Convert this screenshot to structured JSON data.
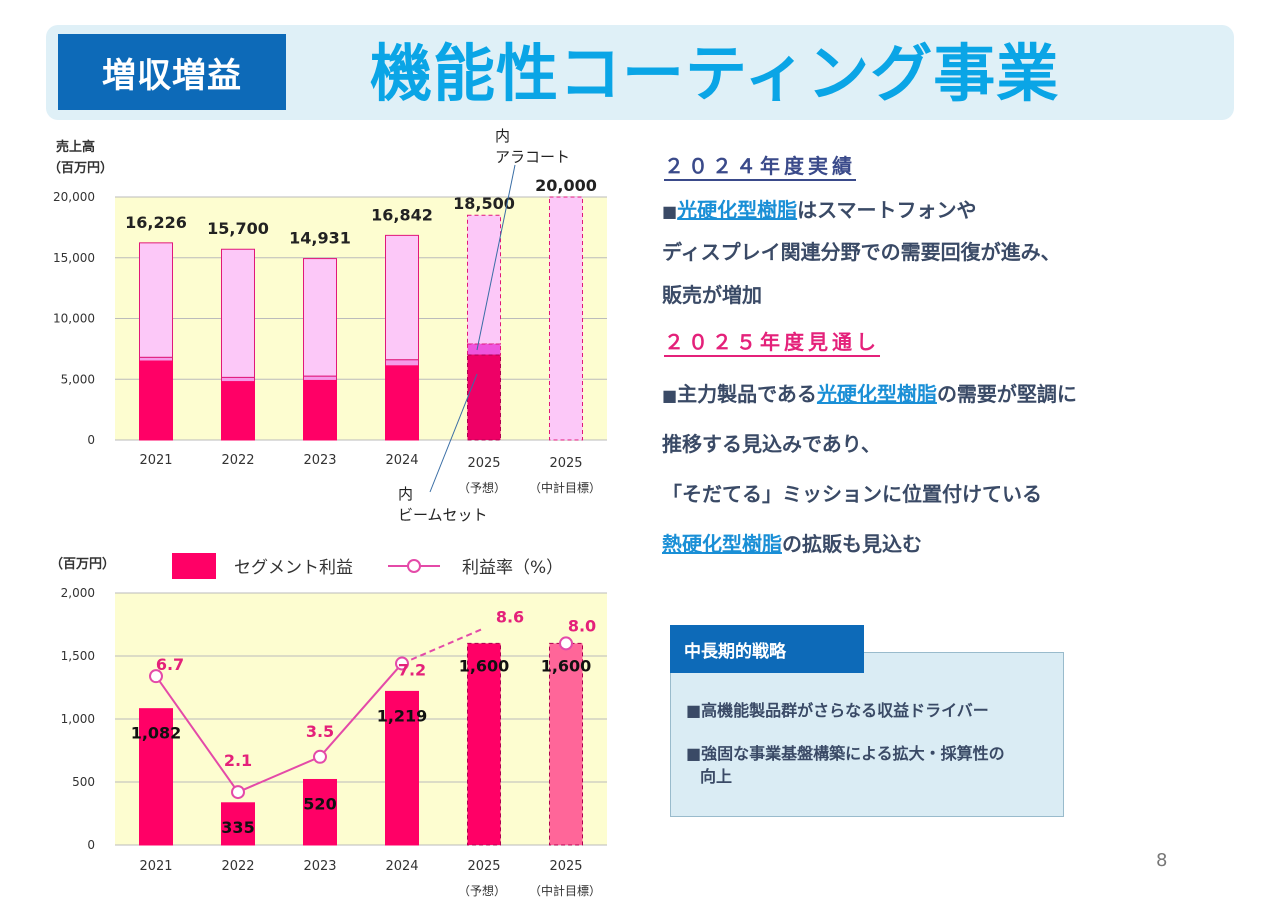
{
  "header": {
    "badge": "増収増益",
    "title": "機能性コーティング事業"
  },
  "sales_chart_labels": {
    "y_title_line1": "売上高",
    "y_title_line2": "（百万円）",
    "annotation_alacoat_line1": "内",
    "annotation_alacoat_line2": "アラコート",
    "annotation_beamset_line1": "内",
    "annotation_beamset_line2": "ビームセット",
    "sub_forecast": "（予想）",
    "sub_plan": "（中計目標）"
  },
  "profit_chart_labels": {
    "y_title": "（百万円）",
    "legend_bar": "セグメント利益",
    "legend_line": "利益率（%）",
    "sub_forecast": "（予想）",
    "sub_plan": "（中計目標）"
  },
  "chart_data": [
    {
      "type": "bar",
      "ylabel": "売上高（百万円）",
      "ylim": [
        0,
        20000
      ],
      "yticks": [
        "0",
        "5,000",
        "10,000",
        "15,000",
        "20,000"
      ],
      "categories": [
        "2021",
        "2022",
        "2023",
        "2024",
        "2025",
        "2025"
      ],
      "totals": [
        16226,
        15700,
        14931,
        16842,
        18500,
        20000
      ],
      "total_labels": [
        "16,226",
        "15,700",
        "14,931",
        "16,842",
        "18,500",
        "20,000"
      ],
      "series": [
        {
          "name": "ビームセット",
          "values": [
            6500,
            4800,
            4900,
            6100,
            7000,
            null
          ]
        },
        {
          "name": "アラコート",
          "values": [
            300,
            350,
            350,
            500,
            900,
            null
          ]
        }
      ],
      "grid": true,
      "colors": {
        "beamset": "#ff0066",
        "alacoat": "#f59ae8",
        "other": "#fcc8f8",
        "plot_bg": "#fdfdd0"
      }
    },
    {
      "type": "bar",
      "ylabel": "（百万円）",
      "ylim": [
        0,
        2000
      ],
      "yticks": [
        "0",
        "500",
        "1,000",
        "1,500",
        "2,000"
      ],
      "categories": [
        "2021",
        "2022",
        "2023",
        "2024",
        "2025",
        "2025"
      ],
      "series": [
        {
          "name": "セグメント利益",
          "values": [
            1082,
            335,
            520,
            1219,
            1600,
            1600
          ],
          "labels": [
            "1,082",
            "335",
            "520",
            "1,219",
            "1,600",
            "1,600"
          ]
        },
        {
          "name": "利益率（%）",
          "values": [
            6.7,
            2.1,
            3.5,
            7.2,
            8.6,
            8.0
          ],
          "labels": [
            "6.7",
            "2.1",
            "3.5",
            "7.2",
            "8.6",
            "8.0"
          ]
        }
      ],
      "legend_position": "top",
      "grid": true,
      "colors": {
        "bar": "#ff0066",
        "plan_bar": "#ff6699",
        "line": "#e44aa8",
        "label": "#e4217a"
      }
    }
  ],
  "results_2024": {
    "heading": "２０２４年度実績",
    "line1_mark": "■",
    "line1_hl": "光硬化型樹脂",
    "line1_rest": "はスマートフォンや",
    "line2": "ディスプレイ関連分野での需要回復が進み、",
    "line3": "販売が増加"
  },
  "outlook_2025": {
    "heading": "２０２５年度見通し",
    "line1_mark": "■",
    "line1_pre": "主力製品である",
    "line1_hl": "光硬化型樹脂",
    "line1_rest": "の需要が堅調に",
    "line2": "推移する見込みであり、",
    "line3": "「そだてる」ミッションに位置付けている",
    "line4_hl": "熱硬化型樹脂",
    "line4_rest": "の拡販も見込む"
  },
  "strategy": {
    "tab": "中長期的戦略",
    "item1": "■高機能製品群がさらなる収益ドライバー",
    "item2_line1": "■強固な事業基盤構築による拡大・採算性の",
    "item2_line2": "向上"
  },
  "page_number": "8"
}
